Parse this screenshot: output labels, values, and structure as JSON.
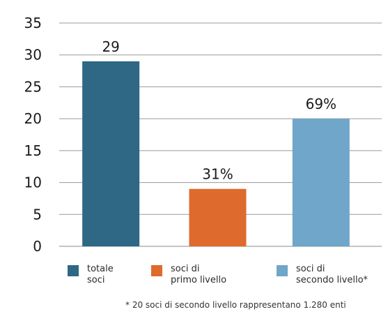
{
  "chart_data": {
    "type": "bar",
    "categories": [
      "totale soci",
      "soci di primo livello",
      "soci di secondo livello*"
    ],
    "values": [
      29,
      9,
      20
    ],
    "data_labels": [
      "29",
      "31%",
      "69%"
    ],
    "colors": [
      "#2e6884",
      "#de6a2d",
      "#6fa6c9"
    ],
    "ylim": [
      0,
      35
    ],
    "yticks": [
      "0",
      "5",
      "10",
      "15",
      "20",
      "25",
      "30",
      "35"
    ],
    "grid": true,
    "legend_position": "bottom",
    "title": "",
    "xlabel": "",
    "ylabel": ""
  },
  "legend": [
    {
      "label": "totale\nsoci",
      "color": "#2e6884"
    },
    {
      "label": "soci di\nprimo livello",
      "color": "#de6a2d"
    },
    {
      "label": "soci di\nsecondo livello*",
      "color": "#6fa6c9"
    }
  ],
  "footnote": "* 20 soci di secondo livello rappresentano 1.280 enti"
}
